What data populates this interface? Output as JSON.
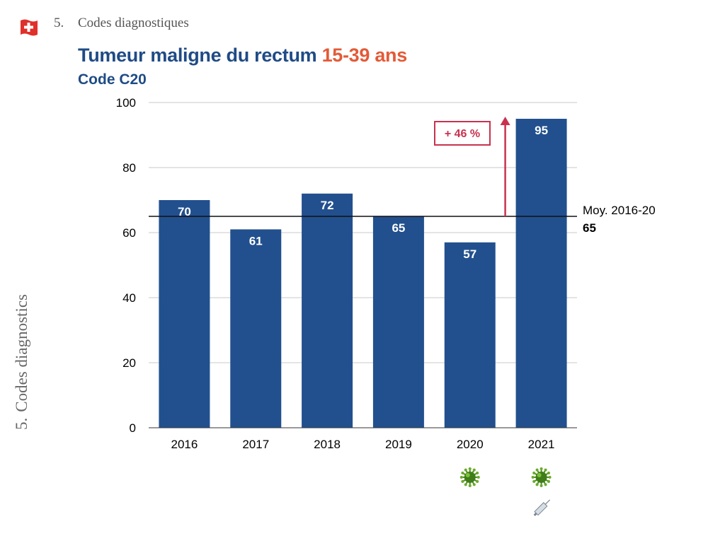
{
  "header": {
    "section_number": "5.",
    "section_title": "Codes diagnostiques",
    "flag_icon": "swiss-flag-icon"
  },
  "side": {
    "number": "5.",
    "label": "Codes diagnostics"
  },
  "colors": {
    "bar": "#22508e",
    "title": "#1f4b86",
    "accent": "#e35a37",
    "highlight": "#c8324f"
  },
  "chart_data": {
    "type": "bar",
    "title_main": "Tumeur maligne du rectum",
    "title_accent": "15-39 ans",
    "subtitle": "Code C20",
    "categories": [
      "2016",
      "2017",
      "2018",
      "2019",
      "2020",
      "2021"
    ],
    "values": [
      70,
      61,
      72,
      65,
      57,
      95
    ],
    "ylim": [
      0,
      100
    ],
    "yticks": [
      0,
      20,
      40,
      60,
      80,
      100
    ],
    "grid": true,
    "reference_line": {
      "label": "Moy. 2016-20",
      "value": 65,
      "value_label": "65"
    },
    "annotation": {
      "text": "+ 46 %",
      "category": "2021"
    },
    "category_icons": [
      {
        "category": "2020",
        "icons": [
          "virus-icon"
        ]
      },
      {
        "category": "2021",
        "icons": [
          "virus-icon",
          "syringe-icon"
        ]
      }
    ]
  }
}
